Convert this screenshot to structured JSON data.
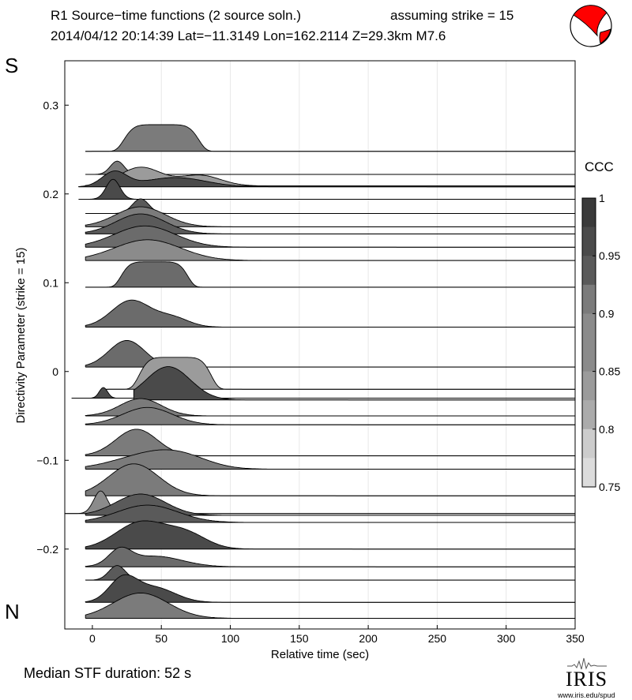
{
  "header": {
    "title_left": "R1 Source−time functions (2 source soln.)",
    "title_right": "assuming strike = 15",
    "event_line": "2014/04/12 20:14:39  Lat=−11.3149 Lon=162.2114  Z=29.3km  M7.6"
  },
  "labels": {
    "top_letter": "S",
    "bottom_letter": "N"
  },
  "footer": {
    "median_text": "Median STF duration: 52 s"
  },
  "logo": {
    "name": "IRIS",
    "url": "www.iris.edu/spud"
  },
  "beachball": {
    "fill": "#ff0000",
    "outline": "#000000"
  },
  "colorbar": {
    "title": "CCC",
    "tick_labels": [
      "1",
      "0.95",
      "0.9",
      "0.85",
      "0.8",
      "0.75"
    ],
    "ticks": [
      1,
      0.95,
      0.9,
      0.85,
      0.8,
      0.75
    ],
    "range": [
      0.75,
      1.0
    ],
    "color_dark": "#3a3a3a",
    "color_light": "#dcdcdc"
  },
  "chart_data": {
    "type": "area",
    "xlabel": "Relative time (sec)",
    "ylabel": "Directivity Parameter (strike = 15)",
    "xlim": [
      -20,
      350
    ],
    "ylim": [
      -0.29,
      0.35
    ],
    "x_tick_labels": [
      "0",
      "50",
      "100",
      "150",
      "200",
      "250",
      "300",
      "350"
    ],
    "x_ticks": [
      0,
      50,
      100,
      150,
      200,
      250,
      300,
      350
    ],
    "y_tick_labels": [
      "0.3",
      "0.2",
      "0.1",
      "0",
      "−0.1",
      "−0.2"
    ],
    "y_ticks": [
      0.3,
      0.2,
      0.1,
      0,
      -0.1,
      -0.2
    ],
    "scale_y_units_per_unit_amp": 0.03,
    "series": [
      {
        "name": "stf-1",
        "d": 0.248,
        "t0": -5,
        "peaks": [
          {
            "c": 50,
            "w": 28,
            "a": 1.0,
            "sh": 6
          }
        ],
        "ccc": 0.91
      },
      {
        "name": "stf-2",
        "d": 0.222,
        "t0": -5,
        "peaks": [
          {
            "c": 18,
            "w": 5,
            "a": 0.5
          }
        ],
        "ccc": 0.89
      },
      {
        "name": "stf-3",
        "d": 0.208,
        "t0": -10,
        "peaks": [
          {
            "c": 16,
            "w": 9,
            "a": 0.55
          },
          {
            "c": 60,
            "w": 22,
            "a": 0.35
          }
        ],
        "ccc": 0.97
      },
      {
        "name": "stf-4",
        "d": 0.209,
        "t0": -5,
        "peaks": [
          {
            "c": 35,
            "w": 15,
            "a": 0.7
          },
          {
            "c": 78,
            "w": 15,
            "a": 0.4
          }
        ],
        "ccc": 0.85
      },
      {
        "name": "stf-5",
        "d": 0.194,
        "t0": -10,
        "peaks": [
          {
            "c": 15,
            "w": 5,
            "a": 0.75
          }
        ],
        "ccc": 0.98
      },
      {
        "name": "stf-6",
        "d": 0.178,
        "t0": -5,
        "peaks": [
          {
            "c": 35,
            "w": 6,
            "a": 0.55
          }
        ],
        "ccc": 0.95
      },
      {
        "name": "stf-7",
        "d": 0.163,
        "t0": -5,
        "peaks": [
          {
            "c": 35,
            "w": 18,
            "a": 0.75
          }
        ],
        "ccc": 0.91
      },
      {
        "name": "stf-8",
        "d": 0.155,
        "t0": -5,
        "peaks": [
          {
            "c": 35,
            "w": 18,
            "a": 0.75
          }
        ],
        "ccc": 0.96
      },
      {
        "name": "stf-9",
        "d": 0.14,
        "t0": -5,
        "peaks": [
          {
            "c": 38,
            "w": 22,
            "a": 0.8
          }
        ],
        "ccc": 0.93
      },
      {
        "name": "stf-10",
        "d": 0.125,
        "t0": -5,
        "peaks": [
          {
            "c": 40,
            "w": 24,
            "a": 0.78
          }
        ],
        "ccc": 0.88
      },
      {
        "name": "stf-11",
        "d": 0.095,
        "t0": -5,
        "peaks": [
          {
            "c": 45,
            "w": 25,
            "a": 0.95,
            "sh": 6
          }
        ],
        "ccc": 0.93
      },
      {
        "name": "stf-12",
        "d": 0.05,
        "t0": -5,
        "peaks": [
          {
            "c": 28,
            "w": 14,
            "a": 1.0
          },
          {
            "c": 58,
            "w": 12,
            "a": 0.35
          }
        ],
        "ccc": 0.93
      },
      {
        "name": "stf-13",
        "d": 0.005,
        "t0": -5,
        "peaks": [
          {
            "c": 25,
            "w": 13,
            "a": 1.0
          }
        ],
        "ccc": 0.93
      },
      {
        "name": "stf-14",
        "d": -0.02,
        "t0": 10,
        "peaks": [
          {
            "c": 60,
            "w": 27,
            "a": 1.2,
            "sh": 6
          }
        ],
        "ccc": 0.85
      },
      {
        "name": "stf-15",
        "d": -0.03,
        "t0": -15,
        "peaks": [
          {
            "c": 8,
            "w": 3,
            "a": 0.4
          }
        ],
        "ccc": 0.97
      },
      {
        "name": "stf-16",
        "d": -0.032,
        "t0": 30,
        "peaks": [
          {
            "c": 55,
            "w": 16,
            "a": 1.25
          }
        ],
        "ccc": 0.97
      },
      {
        "name": "stf-17",
        "d": -0.05,
        "t0": -5,
        "peaks": [
          {
            "c": 35,
            "w": 15,
            "a": 0.65
          }
        ],
        "ccc": 0.91
      },
      {
        "name": "stf-18",
        "d": -0.06,
        "t0": -5,
        "peaks": [
          {
            "c": 40,
            "w": 18,
            "a": 0.65
          }
        ],
        "ccc": 0.91
      },
      {
        "name": "stf-19",
        "d": -0.095,
        "t0": -5,
        "peaks": [
          {
            "c": 32,
            "w": 15,
            "a": 1.0
          }
        ],
        "ccc": 0.91
      },
      {
        "name": "stf-20",
        "d": -0.11,
        "t0": -5,
        "peaks": [
          {
            "c": 40,
            "w": 25,
            "a": 0.5
          },
          {
            "c": 65,
            "w": 20,
            "a": 0.35
          }
        ],
        "ccc": 0.91
      },
      {
        "name": "stf-21",
        "d": -0.14,
        "t0": -5,
        "peaks": [
          {
            "c": 30,
            "w": 18,
            "a": 1.2
          }
        ],
        "ccc": 0.89
      },
      {
        "name": "stf-22",
        "d": -0.16,
        "t0": -20,
        "peaks": [
          {
            "c": 6,
            "w": 5,
            "a": 0.85
          }
        ],
        "ccc": 0.87
      },
      {
        "name": "stf-23",
        "d": -0.162,
        "t0": -5,
        "peaks": [
          {
            "c": 35,
            "w": 18,
            "a": 0.8
          }
        ],
        "ccc": 0.96
      },
      {
        "name": "stf-24",
        "d": -0.17,
        "t0": -5,
        "peaks": [
          {
            "c": 40,
            "w": 22,
            "a": 0.65
          }
        ],
        "ccc": 0.96
      },
      {
        "name": "stf-25",
        "d": -0.2,
        "t0": -5,
        "peaks": [
          {
            "c": 35,
            "w": 18,
            "a": 1.0
          },
          {
            "c": 68,
            "w": 15,
            "a": 0.55
          }
        ],
        "ccc": 0.98
      },
      {
        "name": "stf-26",
        "d": -0.22,
        "t0": -5,
        "peaks": [
          {
            "c": 20,
            "w": 8,
            "a": 0.55
          },
          {
            "c": 45,
            "w": 20,
            "a": 0.4
          }
        ],
        "ccc": 0.93
      },
      {
        "name": "stf-27",
        "d": -0.235,
        "t0": -5,
        "peaks": [
          {
            "c": 18,
            "w": 6,
            "a": 0.55
          }
        ],
        "ccc": 0.95
      },
      {
        "name": "stf-28",
        "d": -0.26,
        "t0": -5,
        "peaks": [
          {
            "c": 22,
            "w": 10,
            "a": 0.85
          },
          {
            "c": 45,
            "w": 15,
            "a": 0.55
          }
        ],
        "ccc": 0.97
      },
      {
        "name": "stf-29",
        "d": -0.278,
        "t0": -5,
        "peaks": [
          {
            "c": 35,
            "w": 20,
            "a": 0.95
          }
        ],
        "ccc": 0.91
      }
    ]
  }
}
